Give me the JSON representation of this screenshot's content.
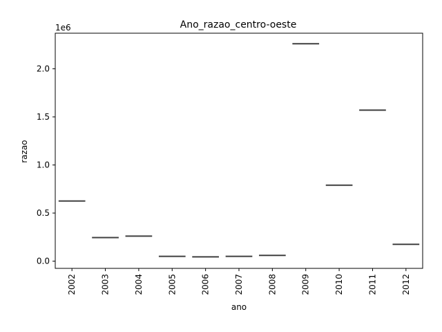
{
  "chart_data": {
    "type": "box",
    "title": "Ano_razao_centro-oeste",
    "xlabel": "ano",
    "ylabel": "razao",
    "y_offset_text": "1e6",
    "categories": [
      "2002",
      "2003",
      "2004",
      "2005",
      "2006",
      "2007",
      "2008",
      "2009",
      "2010",
      "2011",
      "2012"
    ],
    "values": [
      625000,
      245000,
      260000,
      50000,
      45000,
      50000,
      60000,
      2260000,
      790000,
      1570000,
      175000
    ],
    "yticks": [
      0,
      500000,
      1000000,
      1500000,
      2000000
    ],
    "ytick_labels": [
      "0.0",
      "0.5",
      "1.0",
      "1.5",
      "2.0"
    ],
    "ylim": [
      -75000,
      2370000
    ],
    "grid": false,
    "line_color": "#3f3f3f"
  }
}
